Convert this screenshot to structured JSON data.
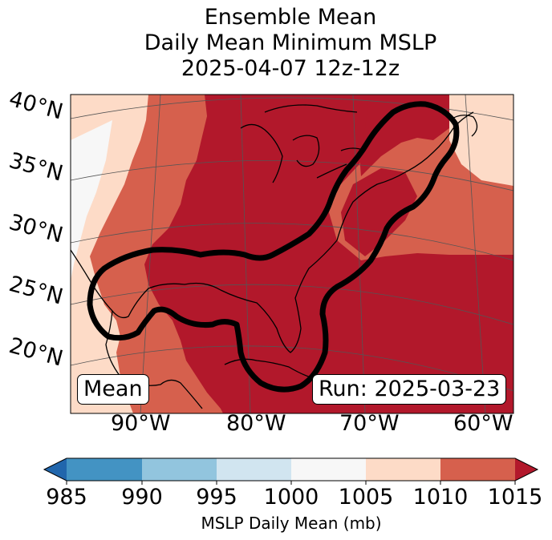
{
  "title": {
    "line1": "Ensemble Mean",
    "line2": "Daily Mean Minimum MSLP",
    "line3": "2025-04-07 12z-12z"
  },
  "map": {
    "lat_labels": [
      "40°N",
      "35°N",
      "30°N",
      "25°N",
      "20°N"
    ],
    "lon_labels": [
      "90°W",
      "80°W",
      "70°W",
      "60°W"
    ],
    "panel_label": "Mean",
    "run_label": "Run: 2025-03-23"
  },
  "colorbar": {
    "ticks": [
      "985",
      "990",
      "995",
      "1000",
      "1005",
      "1010",
      "1015"
    ],
    "label": "MSLP Daily Mean (mb)",
    "colors": {
      "below": "#2166ac",
      "985-990": "#4393c3",
      "990-995": "#92c5de",
      "995-1000": "#d1e5f0",
      "1000-1005": "#f7f7f7",
      "1005-1010": "#fddbc7",
      "1010-1015": "#d6604d",
      "above": "#b2182b"
    }
  }
}
